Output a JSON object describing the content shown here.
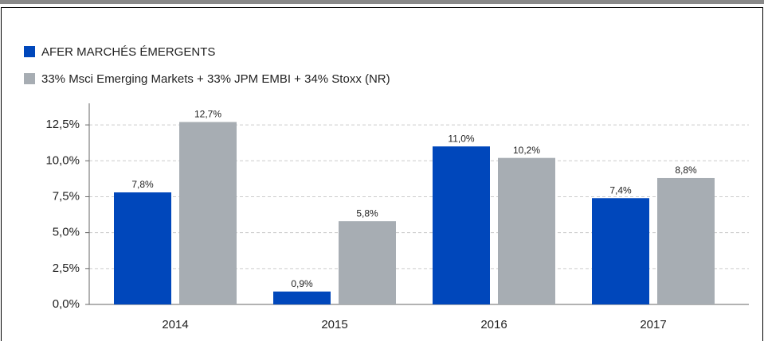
{
  "chart_data": {
    "type": "bar",
    "categories": [
      "2014",
      "2015",
      "2016",
      "2017"
    ],
    "series": [
      {
        "name": "AFER MARCHÉS ÉMERGENTS",
        "color": "#0047bb",
        "values": [
          7.8,
          0.9,
          11.0,
          7.4
        ],
        "value_labels": [
          "7,8%",
          "0,9%",
          "11,0%",
          "7,4%"
        ]
      },
      {
        "name": "33% Msci Emerging Markets + 33% JPM EMBI + 34% Stoxx (NR)",
        "color": "#a7adb3",
        "values": [
          12.7,
          5.8,
          10.2,
          8.8
        ],
        "value_labels": [
          "12,7%",
          "5,8%",
          "10,2%",
          "8,8%"
        ]
      }
    ],
    "ylim": [
      0,
      14
    ],
    "yticks": [
      {
        "value": 0,
        "label": "0,0%"
      },
      {
        "value": 2.5,
        "label": "2,5%"
      },
      {
        "value": 5,
        "label": "5,0%"
      },
      {
        "value": 7.5,
        "label": "7,5%"
      },
      {
        "value": 10,
        "label": "10,0%"
      },
      {
        "value": 12.5,
        "label": "12,5%"
      }
    ],
    "grid": true,
    "legend": "top-left"
  }
}
